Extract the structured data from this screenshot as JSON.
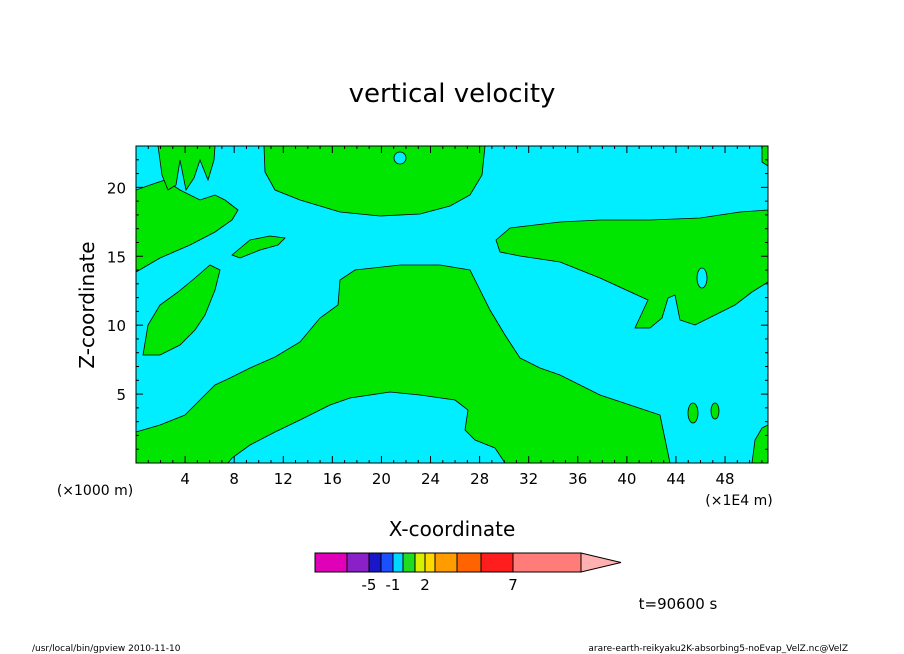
{
  "chart_data": {
    "type": "heatmap",
    "title": "vertical velocity",
    "xlabel": "X-coordinate",
    "ylabel": "Z-coordinate",
    "x_unit_left": "(×1000 m)",
    "x_unit_right": "(×1E4 m)",
    "xlim": [
      0,
      51.5
    ],
    "ylim": [
      0,
      23
    ],
    "x_ticks": [
      "4",
      "8",
      "12",
      "16",
      "20",
      "24",
      "28",
      "32",
      "36",
      "40",
      "44",
      "48"
    ],
    "y_ticks": [
      "5",
      "10",
      "15",
      "20"
    ],
    "background_color": "#00eeff",
    "contour_color": "#00e600",
    "colorbar": {
      "colors": [
        "#e000b8",
        "#8a20c8",
        "#1818c8",
        "#1a50ff",
        "#00d8ff",
        "#20dc20",
        "#d8f000",
        "#ffd800",
        "#ff9c00",
        "#ff6400",
        "#ff1e1e",
        "#ff7c78",
        "#ffb0b0"
      ],
      "labels": [
        "-5",
        "-1",
        "2",
        "7"
      ],
      "label_positions": [
        -5,
        -1,
        2,
        7
      ]
    },
    "time_label": "t=90600 s"
  },
  "footer": {
    "left": "/usr/local/bin/gpview   2010-11-10",
    "right": "arare-earth-reikyaku2K-absorbing5-noEvap_VelZ.nc@VelZ"
  }
}
